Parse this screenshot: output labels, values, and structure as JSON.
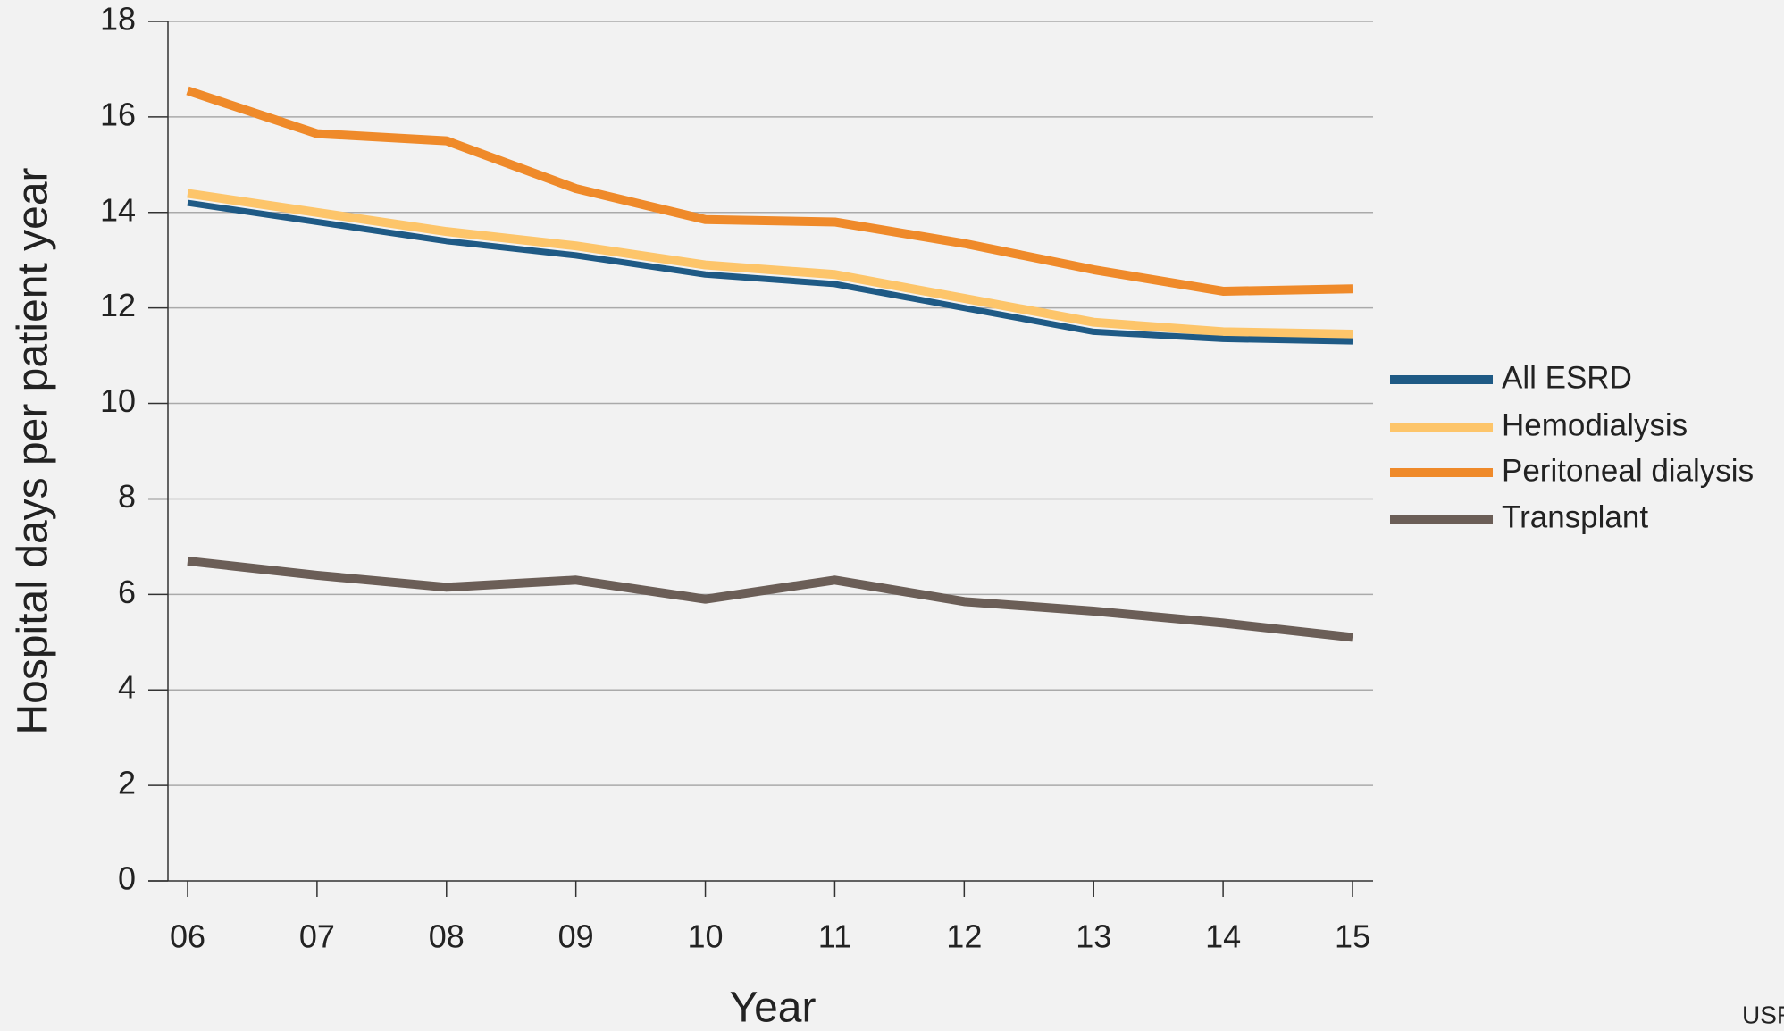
{
  "chart_data": {
    "type": "line",
    "x_label": "Year",
    "y_label": "Hospital days per patient year",
    "source": "USR",
    "categories": [
      "06",
      "07",
      "08",
      "09",
      "10",
      "11",
      "12",
      "13",
      "14",
      "15"
    ],
    "series": [
      {
        "name": "All ESRD",
        "color": "#1f5a85",
        "values": [
          14.2,
          13.8,
          13.4,
          13.1,
          12.7,
          12.5,
          12.0,
          11.5,
          11.35,
          11.3
        ]
      },
      {
        "name": "Hemodialysis",
        "color": "#fdc56a",
        "values": [
          14.4,
          14.0,
          13.6,
          13.3,
          12.9,
          12.7,
          12.2,
          11.7,
          11.5,
          11.45
        ]
      },
      {
        "name": "Peritoneal dialysis",
        "color": "#ef8a2a",
        "values": [
          16.55,
          15.65,
          15.5,
          14.5,
          13.85,
          13.8,
          13.35,
          12.8,
          12.35,
          12.4
        ]
      },
      {
        "name": "Transplant",
        "color": "#6b5e57",
        "values": [
          6.7,
          6.4,
          6.15,
          6.3,
          5.9,
          6.3,
          5.85,
          5.65,
          5.4,
          5.1
        ]
      }
    ],
    "ylim": [
      0,
      18
    ],
    "yticks": [
      0,
      2,
      4,
      6,
      8,
      10,
      12,
      14,
      16,
      18
    ],
    "grid": true
  }
}
